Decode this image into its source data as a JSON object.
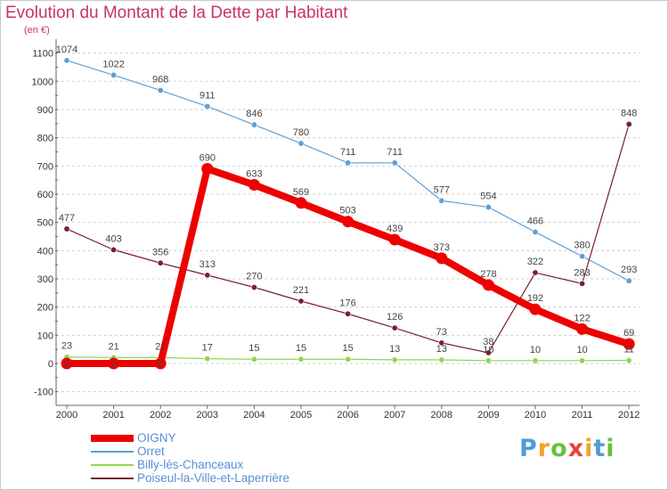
{
  "chart_data": {
    "type": "line",
    "title": "Evolution du Montant de la Dette par Habitant",
    "unit_label": "(en €)",
    "x": [
      "2000",
      "2001",
      "2002",
      "2003",
      "2004",
      "2005",
      "2006",
      "2007",
      "2008",
      "2009",
      "2010",
      "2011",
      "2012"
    ],
    "yticks": [
      "-100",
      "0",
      "100",
      "200",
      "300",
      "400",
      "500",
      "600",
      "700",
      "800",
      "900",
      "1000",
      "1100"
    ],
    "ylim": [
      -100,
      1100
    ],
    "grid": "horizontal-dashed",
    "legend_position": "bottom-left",
    "series": [
      {
        "name": "OIGNY",
        "color": "#ee0000",
        "values": [
          0,
          0,
          0,
          690,
          633,
          569,
          503,
          439,
          373,
          278,
          192,
          122,
          69
        ],
        "labels": [
          "0",
          "0",
          "0",
          "690",
          "633",
          "569",
          "503",
          "439",
          "373",
          "278",
          "192",
          "122",
          "69"
        ]
      },
      {
        "name": "Orret",
        "color": "#5d9fd5",
        "values": [
          1074,
          1022,
          968,
          911,
          846,
          780,
          711,
          711,
          577,
          554,
          466,
          380,
          293
        ],
        "labels": [
          "1074",
          "1022",
          "968",
          "911",
          "846",
          "780",
          "711",
          "711",
          "577",
          "554",
          "466",
          "380",
          "293"
        ]
      },
      {
        "name": "Billy-lès-Chanceaux",
        "color": "#8fd650",
        "values": [
          23,
          21,
          21,
          17,
          15,
          15,
          15,
          13,
          13,
          10,
          10,
          10,
          11
        ],
        "labels": [
          "23",
          "21",
          "21",
          "17",
          "15",
          "15",
          "15",
          "13",
          "13",
          "10",
          "10",
          "10",
          "11"
        ]
      },
      {
        "name": "Poiseul-la-Ville-et-Laperrière",
        "color": "#7a1f2b",
        "values": [
          477,
          403,
          356,
          313,
          270,
          221,
          176,
          126,
          73,
          38,
          322,
          283,
          848
        ],
        "labels": [
          "477",
          "403",
          "356",
          "313",
          "270",
          "221",
          "176",
          "126",
          "73",
          "38",
          "322",
          "283",
          "848"
        ]
      }
    ]
  },
  "logo": {
    "letters": [
      "P",
      "r",
      "o",
      "x",
      "i",
      "t",
      "i"
    ],
    "colors": [
      "#4f9bd8",
      "#f2a42b",
      "#6bbf3f",
      "#e5443a",
      "#f2a42b",
      "#4f9bd8",
      "#6bbf3f"
    ]
  }
}
